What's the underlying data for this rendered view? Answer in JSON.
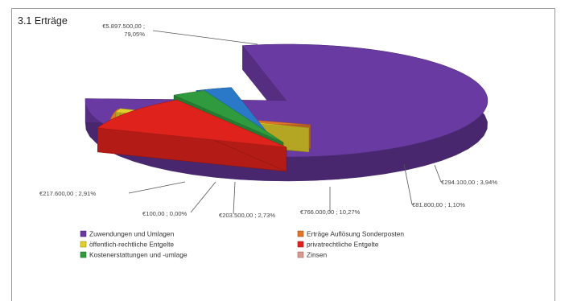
{
  "title": "3.1 Erträge",
  "chart_data": {
    "type": "pie",
    "title": "3.1 Erträge",
    "slices": [
      {
        "name": "Zuwendungen und Umlagen",
        "label": "€5.897.500,00 ;\n79,05%",
        "value": 5897500.0,
        "percent": 79.05,
        "color": "#6a3aa3"
      },
      {
        "name": "Erträge Auflösung Sonderposten",
        "label": "€294.100,00 ; 3,94%",
        "value": 294100.0,
        "percent": 3.94,
        "color": "#e0742a"
      },
      {
        "name": "öffentlich-rechtliche Entgelte",
        "label": "€81.800,00 ; 1,10%",
        "value": 81800.0,
        "percent": 1.1,
        "color": "#e1d02a"
      },
      {
        "name": "privatrechtliche Entgelte",
        "label": "€766.000,00 ; 10,27%",
        "value": 766000.0,
        "percent": 10.27,
        "color": "#e0221c"
      },
      {
        "name": "Kostenerstattungen und -umlage",
        "label": "€203.500,00 ; 2,73%",
        "value": 203500.0,
        "percent": 2.73,
        "color": "#2f9a3e"
      },
      {
        "name": "Zinsen",
        "label": "€100,00 ; 0,00%",
        "value": 100.0,
        "percent": 0.0,
        "color": "#d99a8f"
      },
      {
        "name": "",
        "label": "€217.600,00 ; 2,91%",
        "value": 217600.0,
        "percent": 2.91,
        "color": "#2a78c8"
      }
    ],
    "legend": {
      "placement": "bottom",
      "items": [
        {
          "label": "Zuwendungen und Umlagen",
          "color": "#6a3aa3"
        },
        {
          "label": "Erträge Auflösung Sonderposten",
          "color": "#e0742a"
        },
        {
          "label": "öffentlich-rechtliche Entgelte",
          "color": "#e1d02a"
        },
        {
          "label": "privatrechtliche Entgelte",
          "color": "#e0221c"
        },
        {
          "label": "Kostenerstattungen und -umlage",
          "color": "#2f9a3e"
        },
        {
          "label": "Zinsen",
          "color": "#d99a8f"
        }
      ]
    }
  }
}
